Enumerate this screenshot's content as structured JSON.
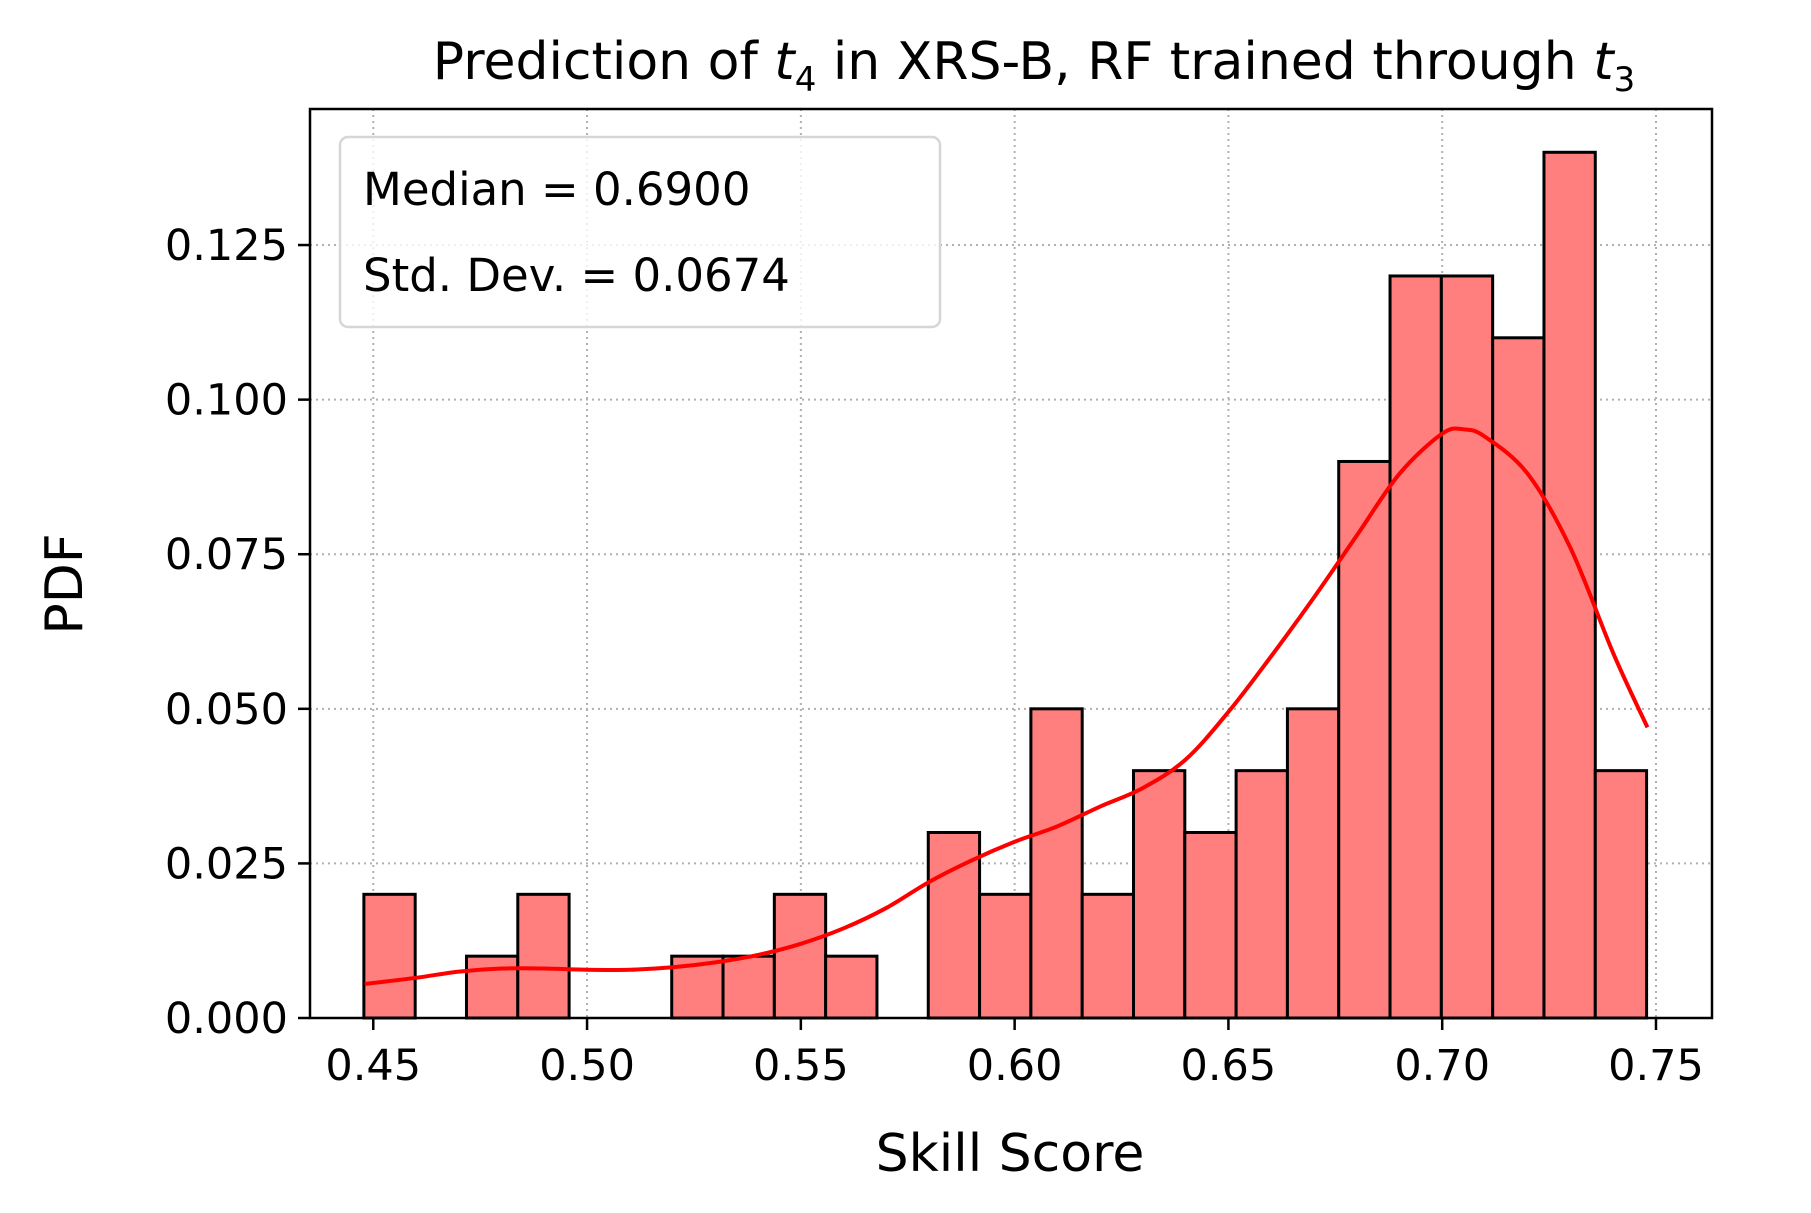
{
  "chart_data": {
    "type": "bar",
    "title": {
      "prefix": "Prediction of ",
      "var1": "t",
      "sub1": "4",
      "middle": " in XRS-B, RF trained through ",
      "var2": "t",
      "sub2": "3"
    },
    "xlabel": "Skill Score",
    "ylabel": "PDF",
    "xlim": [
      0.4352,
      0.7631
    ],
    "ylim": [
      0,
      0.147
    ],
    "xticks": [
      0.45,
      0.5,
      0.55,
      0.6,
      0.65,
      0.7,
      0.75
    ],
    "xtick_labels": [
      "0.45",
      "0.50",
      "0.55",
      "0.60",
      "0.65",
      "0.70",
      "0.75"
    ],
    "yticks": [
      0.0,
      0.025,
      0.05,
      0.075,
      0.1,
      0.125
    ],
    "ytick_labels": [
      "0.000",
      "0.025",
      "0.050",
      "0.075",
      "0.100",
      "0.125"
    ],
    "grid": true,
    "bin_edges": [
      0.4478,
      0.4598,
      0.4718,
      0.4838,
      0.4958,
      0.5078,
      0.5198,
      0.5318,
      0.5438,
      0.5558,
      0.5678,
      0.5798,
      0.5918,
      0.6038,
      0.6158,
      0.6278,
      0.6398,
      0.6518,
      0.6638,
      0.6758,
      0.6878,
      0.6998,
      0.7118,
      0.7238,
      0.7358,
      0.7478
    ],
    "values": [
      0.02,
      0.0,
      0.01,
      0.02,
      0.0,
      0.0,
      0.01,
      0.01,
      0.02,
      0.01,
      0.0,
      0.03,
      0.02,
      0.05,
      0.02,
      0.04,
      0.03,
      0.04,
      0.05,
      0.09,
      0.12,
      0.12,
      0.11,
      0.14,
      0.04
    ],
    "kde": {
      "x": [
        0.448,
        0.46,
        0.47,
        0.48,
        0.49,
        0.5,
        0.51,
        0.52,
        0.53,
        0.54,
        0.55,
        0.56,
        0.57,
        0.58,
        0.59,
        0.6,
        0.61,
        0.62,
        0.63,
        0.64,
        0.65,
        0.66,
        0.67,
        0.68,
        0.69,
        0.7,
        0.705,
        0.71,
        0.72,
        0.73,
        0.74,
        0.748
      ],
      "y": [
        0.0055,
        0.0065,
        0.0075,
        0.008,
        0.008,
        0.0078,
        0.0078,
        0.0082,
        0.009,
        0.0102,
        0.012,
        0.0145,
        0.0178,
        0.022,
        0.0255,
        0.0285,
        0.031,
        0.0342,
        0.0372,
        0.0418,
        0.0495,
        0.0585,
        0.068,
        0.078,
        0.088,
        0.0945,
        0.0952,
        0.094,
        0.088,
        0.076,
        0.059,
        0.047
      ]
    },
    "bar_color": "#ff7f7f",
    "bar_edge_color": "#000000",
    "kde_color": "#ff0000",
    "legend": {
      "placement": "top-left",
      "lines": [
        "Median = 0.6900",
        "Std. Dev. = 0.0674"
      ]
    }
  }
}
